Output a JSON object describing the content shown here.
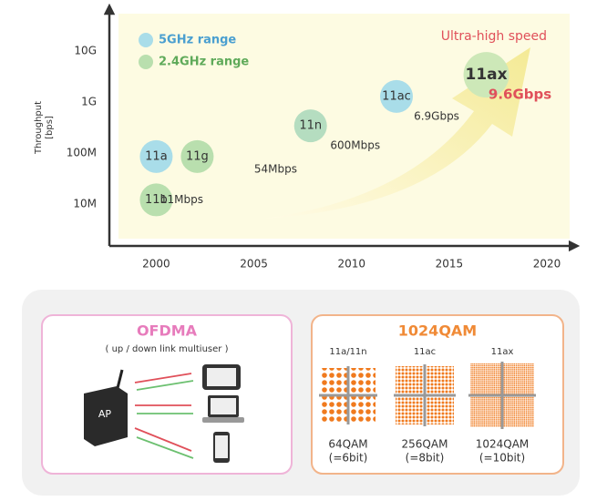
{
  "chart_data": {
    "type": "bubble",
    "y_label": [
      "Throughput",
      "[bps]"
    ],
    "legend": [
      {
        "name": "5GHz range",
        "color": "#a9dde9",
        "text_color": "#4a9fd0"
      },
      {
        "name": "2.4GHz range",
        "color": "#b9dfae",
        "text_color": "#5faa5a"
      }
    ],
    "annotation": "Ultra-high speed",
    "xlim": [
      1997.6,
      2021.4
    ],
    "xticks": [
      2000,
      2005,
      2010,
      2015,
      2020
    ],
    "ylim": [
      1500000,
      66000000000
    ],
    "log_y": true,
    "yticks": [
      {
        "value": 10000000,
        "label": "10M"
      },
      {
        "value": 100000000,
        "label": "100M"
      },
      {
        "value": 1000000000,
        "label": "1G"
      },
      {
        "value": 10000000000,
        "label": "10G"
      }
    ],
    "points": [
      {
        "label": "11a",
        "x": 2000,
        "y": 85000000,
        "color": "#a9dde9"
      },
      {
        "label": "11b",
        "x": 2000,
        "y": 12000000,
        "color": "#b9dfae",
        "rate": "11Mbps"
      },
      {
        "label": "11g",
        "x": 2002.1,
        "y": 85000000,
        "color": "#b9dfae",
        "rate": "54Mbps"
      },
      {
        "label": "11n",
        "x": 2007.9,
        "y": 340000000,
        "color": "#b5ddc0",
        "rate": "600Mbps"
      },
      {
        "label": "11ac",
        "x": 2012.3,
        "y": 1280000000,
        "color": "#a9dde9",
        "rate": "6.9Gbps"
      },
      {
        "label": "11ax",
        "x": 2016.9,
        "y": 3400000000,
        "color": "#cde8b8",
        "rate": "9.6Gbps"
      }
    ]
  },
  "ofdma": {
    "title": "OFDMA",
    "subtitle": "( up / down link multiuser )",
    "ap_label": "AP"
  },
  "qam": {
    "title": "1024QAM",
    "columns": [
      {
        "standard": "11a/11n",
        "modulation": "64QAM",
        "bits": "(=6bit)"
      },
      {
        "standard": "11ac",
        "modulation": "256QAM",
        "bits": "(=8bit)"
      },
      {
        "standard": "11ax",
        "modulation": "1024QAM",
        "bits": "(=10bit)"
      }
    ]
  }
}
